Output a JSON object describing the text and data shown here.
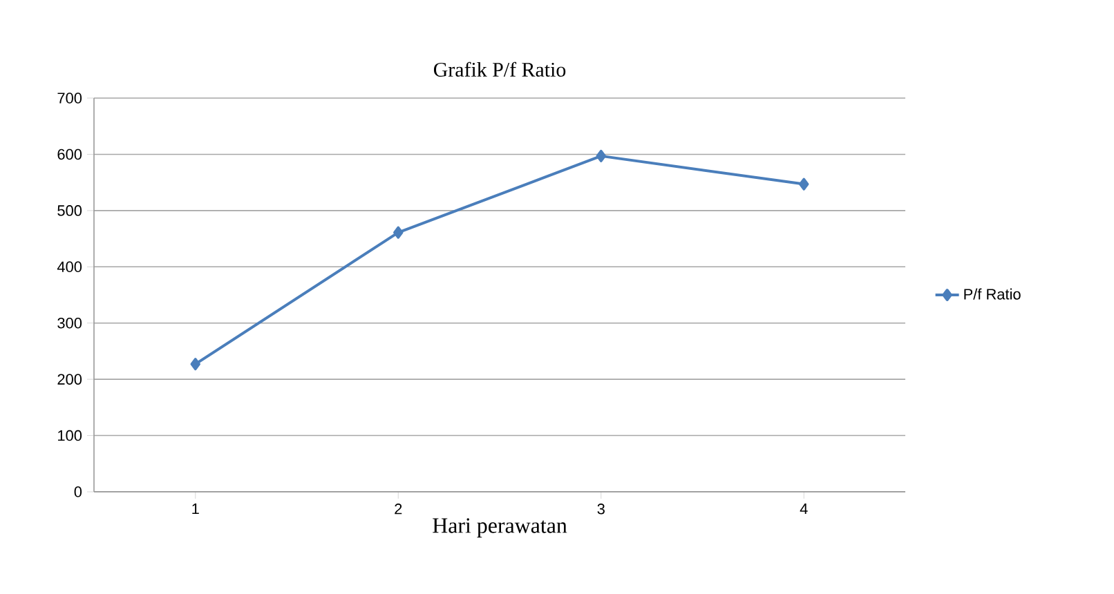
{
  "chart_data": {
    "type": "line",
    "title": "Grafik P/f Ratio",
    "xlabel": "Hari perawatan",
    "categories": [
      "1",
      "2",
      "3",
      "4"
    ],
    "series": [
      {
        "name": "P/f Ratio",
        "color": "#4a7ebb",
        "values": [
          227,
          461,
          597,
          547
        ]
      }
    ],
    "ylim": [
      0,
      700
    ],
    "yticks": [
      0,
      100,
      200,
      300,
      400,
      500,
      600,
      700
    ],
    "grid": "y",
    "legend": "right",
    "marker": "diamond",
    "line_style": "solid"
  }
}
